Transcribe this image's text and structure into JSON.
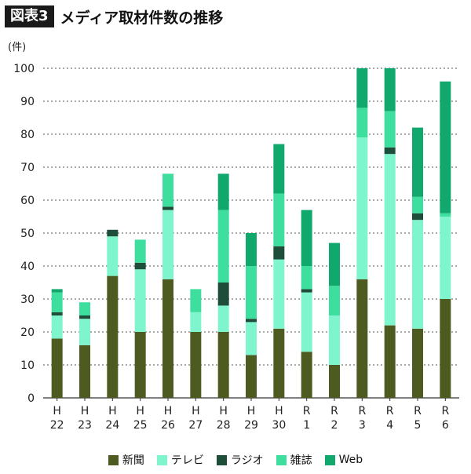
{
  "header": {
    "badge": "図表3",
    "title": "メディア取材件数の推移"
  },
  "colors": {
    "新聞": "#4d5a20",
    "テレビ": "#7ef5cc",
    "ラジオ": "#1e4d3a",
    "雑誌": "#3dde9e",
    "Web": "#10a86c"
  },
  "chart_data": {
    "type": "bar",
    "stacked": true,
    "title": "メディア取材件数の推移",
    "ylabel": "(件)",
    "xlabel": "",
    "ylim": [
      0,
      100
    ],
    "yticks": [
      0,
      10,
      20,
      30,
      40,
      50,
      60,
      70,
      80,
      90,
      100
    ],
    "grid": true,
    "categories": [
      [
        "H",
        "22"
      ],
      [
        "H",
        "23"
      ],
      [
        "H",
        "24"
      ],
      [
        "H",
        "25"
      ],
      [
        "H",
        "26"
      ],
      [
        "H",
        "27"
      ],
      [
        "H",
        "28"
      ],
      [
        "H",
        "29"
      ],
      [
        "H",
        "30"
      ],
      [
        "R",
        "1"
      ],
      [
        "R",
        "2"
      ],
      [
        "R",
        "3"
      ],
      [
        "R",
        "4"
      ],
      [
        "R",
        "5"
      ],
      [
        "R",
        "6"
      ]
    ],
    "series": [
      {
        "name": "新聞",
        "values": [
          18,
          16,
          37,
          20,
          36,
          20,
          20,
          13,
          21,
          14,
          10,
          36,
          22,
          21,
          30
        ]
      },
      {
        "name": "テレビ",
        "values": [
          7,
          8,
          12,
          19,
          21,
          6,
          8,
          10,
          21,
          18,
          15,
          43,
          52,
          33,
          25
        ]
      },
      {
        "name": "ラジオ",
        "values": [
          1,
          1,
          2,
          2,
          1,
          0,
          7,
          1,
          4,
          1,
          0,
          0,
          2,
          2,
          0
        ]
      },
      {
        "name": "雑誌",
        "values": [
          6,
          4,
          0,
          7,
          10,
          7,
          22,
          16,
          16,
          7,
          9,
          9,
          11,
          5,
          1
        ]
      },
      {
        "name": "Web",
        "values": [
          1,
          0,
          0,
          0,
          0,
          0,
          11,
          10,
          15,
          17,
          13,
          12,
          13,
          21,
          40
        ]
      }
    ],
    "legend_position": "bottom"
  }
}
